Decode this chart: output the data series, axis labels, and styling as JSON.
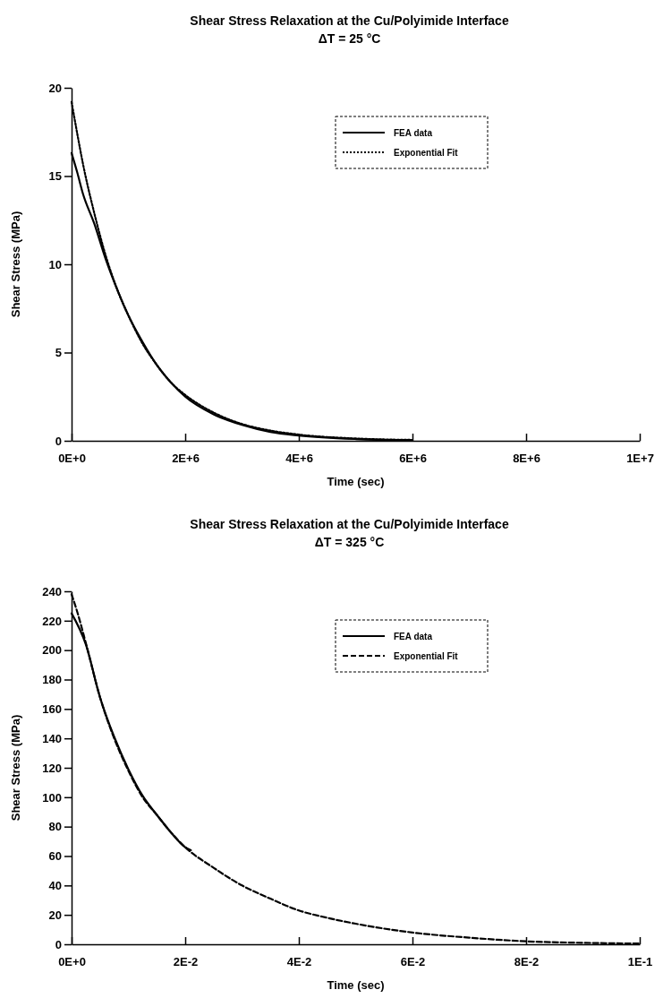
{
  "chart_data": [
    {
      "type": "line",
      "title": "Shear Stress Relaxation at the Cu/Polyimide Interface",
      "subtitle": "ΔT = 25 °C",
      "xlabel": "Time (sec)",
      "ylabel": "Shear Stress (MPa)",
      "xlim": [
        0,
        10000000
      ],
      "xticks": [
        {
          "value": 0,
          "label": "0E+0"
        },
        {
          "value": 2000000,
          "label": "2E+6"
        },
        {
          "value": 4000000,
          "label": "4E+6"
        },
        {
          "value": 6000000,
          "label": "6E+6"
        },
        {
          "value": 8000000,
          "label": "8E+6"
        },
        {
          "value": 10000000,
          "label": "1E+7"
        }
      ],
      "ylim": [
        0,
        20
      ],
      "yticks": [
        0,
        5,
        10,
        15,
        20
      ],
      "grid": false,
      "legend": "top right",
      "series": [
        {
          "name": "FEA data",
          "color": "#000000",
          "line_style": "solid",
          "x": [
            0,
            100000,
            200000,
            400000,
            600000,
            800000,
            1000000,
            1250000,
            1500000,
            1750000,
            2000000,
            2500000,
            3000000,
            3500000,
            4000000,
            5000000,
            6000000
          ],
          "values": [
            16.3,
            15.2,
            14.0,
            12.3,
            10.3,
            8.6,
            7.1,
            5.6,
            4.3,
            3.3,
            2.5,
            1.5,
            0.9,
            0.5,
            0.3,
            0.1,
            0.03
          ]
        },
        {
          "name": "Exponential Fit",
          "color": "#000000",
          "line_style": "dotted",
          "x": [
            0,
            100000,
            200000,
            400000,
            600000,
            800000,
            1000000,
            1250000,
            1500000,
            1750000,
            2000000,
            2500000,
            3000000,
            3500000,
            4000000,
            5000000,
            6000000
          ],
          "values": [
            19.2,
            17.4,
            15.7,
            12.9,
            10.5,
            8.6,
            7.1,
            5.5,
            4.3,
            3.3,
            2.6,
            1.6,
            0.95,
            0.58,
            0.35,
            0.13,
            0.05
          ]
        }
      ]
    },
    {
      "type": "line",
      "title": "Shear Stress Relaxation at the Cu/Polyimide Interface",
      "subtitle": "ΔT = 325 °C",
      "xlabel": "Time (sec)",
      "ylabel": "Shear Stress (MPa)",
      "xlim": [
        0,
        0.1
      ],
      "xticks": [
        {
          "value": 0,
          "label": "0E+0"
        },
        {
          "value": 0.02,
          "label": "2E-2"
        },
        {
          "value": 0.04,
          "label": "4E-2"
        },
        {
          "value": 0.06,
          "label": "6E-2"
        },
        {
          "value": 0.08,
          "label": "8E-2"
        },
        {
          "value": 0.1,
          "label": "1E-1"
        }
      ],
      "ylim": [
        0,
        240
      ],
      "yticks": [
        0,
        20,
        40,
        60,
        80,
        100,
        120,
        140,
        160,
        180,
        200,
        220,
        240
      ],
      "grid": false,
      "legend": "top right",
      "series": [
        {
          "name": "FEA data",
          "color": "#000000",
          "line_style": "solid",
          "x": [
            0,
            0.0025,
            0.005,
            0.0075,
            0.01,
            0.0125,
            0.015,
            0.0175,
            0.02,
            0.021
          ],
          "values": [
            225,
            204,
            168,
            141,
            119,
            101,
            88,
            76,
            66,
            64
          ]
        },
        {
          "name": "Exponential Fit",
          "color": "#000000",
          "line_style": "dashed",
          "x": [
            0,
            0.001,
            0.0025,
            0.005,
            0.0075,
            0.01,
            0.0125,
            0.015,
            0.0175,
            0.02,
            0.025,
            0.03,
            0.035,
            0.04,
            0.045,
            0.05,
            0.06,
            0.07,
            0.08,
            0.09,
            0.1
          ],
          "values": [
            238,
            226,
            205,
            168,
            140,
            118,
            100,
            88,
            76,
            66,
            52,
            40,
            31,
            23,
            18,
            14,
            8,
            4.5,
            2,
            1,
            0.5
          ]
        }
      ]
    }
  ]
}
